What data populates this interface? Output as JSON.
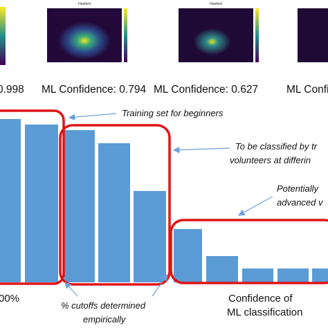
{
  "panels": [
    {
      "title": "Hanford"
    },
    {
      "title": "Hanford"
    }
  ],
  "confidences": [
    "0.998",
    "ML Confidence: 0.794",
    "ML Confidence: 0.627",
    "ML Confi"
  ],
  "annotations": {
    "training": "Training set for beginners",
    "classified": [
      "To be classified by tr",
      "volunteers at differin"
    ],
    "advanced": [
      "Potentially",
      "advanced v"
    ],
    "cutoffs": [
      "% cutoffs determined",
      "empirically"
    ],
    "left_label": "00%",
    "axis_label": [
      "Confidence of",
      "ML classification"
    ]
  }
}
